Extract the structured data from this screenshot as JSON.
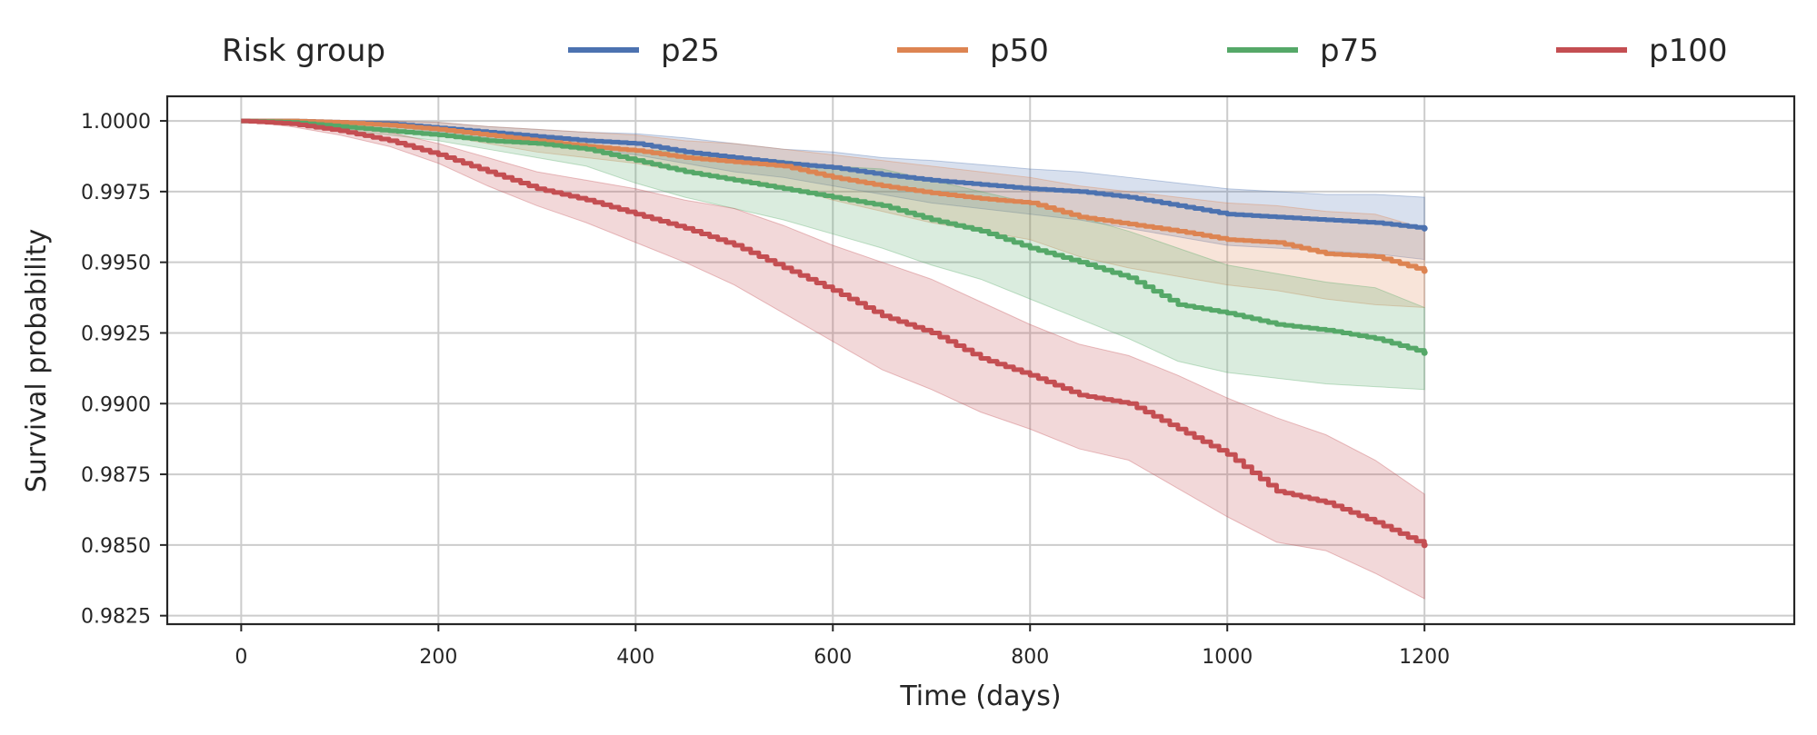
{
  "chart_data": {
    "type": "line",
    "title": "",
    "xlabel": "Time (days)",
    "ylabel": "Survival probability",
    "xlim": [
      -75,
      1575
    ],
    "ylim": [
      0.9822,
      1.00087
    ],
    "xticks": [
      0,
      200,
      400,
      600,
      800,
      1000,
      1200
    ],
    "xtick_labels": [
      "0",
      "200",
      "400",
      "600",
      "800",
      "1000",
      "1200"
    ],
    "yticks": [
      0.9825,
      0.985,
      0.9875,
      0.99,
      0.9925,
      0.995,
      0.9975,
      1.0
    ],
    "ytick_labels": [
      "0.9825",
      "0.9850",
      "0.9875",
      "0.9900",
      "0.9925",
      "0.9950",
      "0.9975",
      "1.0000"
    ],
    "grid": true,
    "legend": {
      "title": "Risk group",
      "position": "top"
    },
    "series": [
      {
        "name": "p25",
        "color": "#4c72b0",
        "x": [
          0,
          50,
          100,
          150,
          200,
          250,
          300,
          350,
          400,
          450,
          500,
          550,
          600,
          650,
          700,
          750,
          800,
          850,
          900,
          950,
          1000,
          1050,
          1100,
          1150,
          1200
        ],
        "y": [
          1.0,
          1.0,
          0.99995,
          0.9999,
          0.99975,
          0.9996,
          0.99945,
          0.9993,
          0.9992,
          0.9989,
          0.9987,
          0.9985,
          0.99835,
          0.9981,
          0.9979,
          0.99775,
          0.9976,
          0.9975,
          0.9973,
          0.997,
          0.9967,
          0.9966,
          0.9965,
          0.9964,
          0.9962
        ],
        "ci_lower": [
          1.0,
          0.99995,
          0.9998,
          0.9997,
          0.9996,
          0.9994,
          0.9992,
          0.999,
          0.9988,
          0.9985,
          0.9982,
          0.998,
          0.9977,
          0.9974,
          0.9971,
          0.9969,
          0.9967,
          0.9965,
          0.9962,
          0.9959,
          0.9956,
          0.9955,
          0.9954,
          0.9953,
          0.9951
        ],
        "ci_upper": [
          1.0,
          1.0,
          1.0,
          1.0,
          0.99995,
          0.9998,
          0.9997,
          0.9996,
          0.99955,
          0.9994,
          0.9992,
          0.999,
          0.9989,
          0.9987,
          0.9986,
          0.99845,
          0.9983,
          0.9982,
          0.998,
          0.9978,
          0.9976,
          0.9975,
          0.9974,
          0.9974,
          0.9973
        ]
      },
      {
        "name": "p50",
        "color": "#dd8452",
        "x": [
          0,
          50,
          100,
          150,
          200,
          250,
          300,
          350,
          400,
          450,
          500,
          550,
          600,
          650,
          700,
          750,
          800,
          850,
          900,
          950,
          1000,
          1050,
          1100,
          1150,
          1200
        ],
        "y": [
          1.0,
          1.0,
          0.99995,
          0.99985,
          0.9997,
          0.9995,
          0.9993,
          0.9991,
          0.99895,
          0.9987,
          0.99855,
          0.9984,
          0.998,
          0.9977,
          0.99745,
          0.99725,
          0.9971,
          0.9966,
          0.99635,
          0.9961,
          0.9958,
          0.9957,
          0.9953,
          0.9952,
          0.9947
        ],
        "ci_lower": [
          1.0,
          0.99995,
          0.9998,
          0.9997,
          0.9995,
          0.9992,
          0.9989,
          0.9987,
          0.9985,
          0.9982,
          0.998,
          0.9977,
          0.9972,
          0.9968,
          0.9964,
          0.9961,
          0.9958,
          0.9952,
          0.9948,
          0.9945,
          0.9942,
          0.994,
          0.9937,
          0.9935,
          0.9934
        ],
        "ci_upper": [
          1.0,
          1.0,
          1.0,
          1.0,
          0.99995,
          0.9998,
          0.9997,
          0.9996,
          0.9995,
          0.9993,
          0.9992,
          0.999,
          0.9988,
          0.9986,
          0.9984,
          0.9982,
          0.998,
          0.9977,
          0.9975,
          0.9973,
          0.9971,
          0.997,
          0.9968,
          0.9967,
          0.9962
        ]
      },
      {
        "name": "p75",
        "color": "#55a868",
        "x": [
          0,
          50,
          100,
          150,
          200,
          250,
          300,
          350,
          400,
          450,
          500,
          550,
          600,
          650,
          700,
          750,
          800,
          850,
          900,
          950,
          1000,
          1050,
          1100,
          1150,
          1200
        ],
        "y": [
          1.0,
          0.99995,
          0.9998,
          0.99965,
          0.9995,
          0.9993,
          0.9992,
          0.999,
          0.9986,
          0.9982,
          0.9979,
          0.9976,
          0.9973,
          0.997,
          0.9965,
          0.9961,
          0.9955,
          0.995,
          0.99445,
          0.9935,
          0.9932,
          0.9928,
          0.9926,
          0.9923,
          0.9918
        ],
        "ci_lower": [
          1.0,
          0.9999,
          0.9997,
          0.9995,
          0.9993,
          0.999,
          0.9987,
          0.9984,
          0.9978,
          0.9973,
          0.9969,
          0.9965,
          0.996,
          0.9955,
          0.9949,
          0.9944,
          0.9937,
          0.993,
          0.9923,
          0.9915,
          0.9911,
          0.9909,
          0.9907,
          0.9906,
          0.9905
        ],
        "ci_upper": [
          1.0,
          1.0,
          0.99995,
          0.9998,
          0.99965,
          0.9995,
          0.99935,
          0.9992,
          0.999,
          0.9989,
          0.99875,
          0.9986,
          0.9984,
          0.9983,
          0.9979,
          0.9975,
          0.9971,
          0.9966,
          0.9961,
          0.9955,
          0.9949,
          0.9946,
          0.9943,
          0.9941,
          0.9934
        ]
      },
      {
        "name": "p100",
        "color": "#c44e52",
        "x": [
          0,
          50,
          100,
          150,
          200,
          250,
          300,
          350,
          400,
          450,
          500,
          550,
          600,
          650,
          700,
          750,
          800,
          850,
          900,
          950,
          1000,
          1050,
          1100,
          1150,
          1200
        ],
        "y": [
          1.0,
          0.9999,
          0.99965,
          0.9993,
          0.9988,
          0.9982,
          0.9976,
          0.9972,
          0.9967,
          0.9962,
          0.9956,
          0.9948,
          0.994,
          0.9931,
          0.9925,
          0.9916,
          0.991,
          0.9903,
          0.99,
          0.9891,
          0.9882,
          0.9869,
          0.9865,
          0.9858,
          0.985
        ],
        "ci_lower": [
          1.0,
          0.9998,
          0.9995,
          0.9991,
          0.9985,
          0.9977,
          0.997,
          0.9964,
          0.9957,
          0.995,
          0.9942,
          0.9932,
          0.9922,
          0.9912,
          0.9905,
          0.9897,
          0.9891,
          0.9884,
          0.988,
          0.987,
          0.986,
          0.9851,
          0.9848,
          0.984,
          0.9831
        ],
        "ci_upper": [
          1.0,
          1.0,
          0.9998,
          0.9996,
          0.9992,
          0.9987,
          0.9982,
          0.9979,
          0.9976,
          0.9972,
          0.9969,
          0.9963,
          0.9956,
          0.995,
          0.9944,
          0.9936,
          0.9928,
          0.9921,
          0.9917,
          0.991,
          0.9902,
          0.9895,
          0.9889,
          0.988,
          0.9868
        ]
      }
    ]
  }
}
